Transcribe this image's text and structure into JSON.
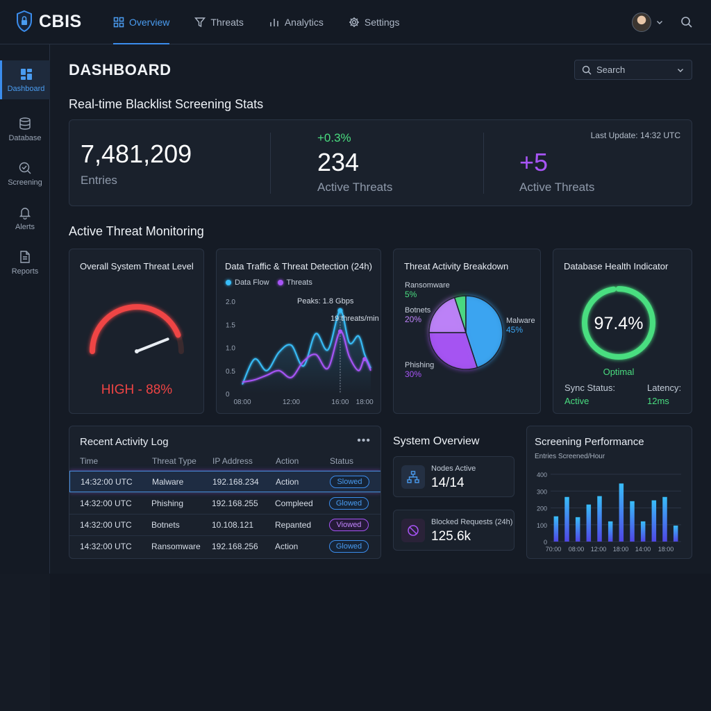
{
  "app": {
    "name": "CBIS"
  },
  "nav": {
    "items": [
      {
        "label": "Overview",
        "icon": "grid-icon",
        "active": true
      },
      {
        "label": "Threats",
        "icon": "filter-icon",
        "active": false
      },
      {
        "label": "Analytics",
        "icon": "bar-chart-icon",
        "active": false
      },
      {
        "label": "Settings",
        "icon": "gear-icon",
        "active": false
      }
    ]
  },
  "sidebar": {
    "items": [
      {
        "label": "Dashboard",
        "icon": "dashboard-icon",
        "active": true
      },
      {
        "label": "Database",
        "icon": "database-icon",
        "active": false
      },
      {
        "label": "Screening",
        "icon": "screening-icon",
        "active": false
      },
      {
        "label": "Alerts",
        "icon": "bell-icon",
        "active": false
      },
      {
        "label": "Reports",
        "icon": "document-icon",
        "active": false
      }
    ]
  },
  "header": {
    "title": "DASHBOARD",
    "search_placeholder": "Search"
  },
  "stats": {
    "section_title": "Real-time Blacklist Screening Stats",
    "entries_value": "7,481,209",
    "entries_label": "Entries",
    "threats_change": "+0.3%",
    "threats_value": "234",
    "threats_label": "Active Threats",
    "new_threats_value": "+5",
    "new_threats_label": "Active Threats",
    "last_update": "Last Update: 14:32 UTC"
  },
  "monitoring": {
    "section_title": "Active Threat Monitoring",
    "threat_level": {
      "title": "Overall System Threat Level",
      "label": "HIGH - 88%",
      "value_pct": 88
    },
    "traffic": {
      "title": "Data Traffic & Threat Detection (24h)",
      "legend": [
        "Data Flow",
        "Threats"
      ],
      "annotation_peak": "Peaks: 1.8 Gbps",
      "annotation_threats": "19 threats/min"
    },
    "breakdown": {
      "title": "Threat Activity Breakdown",
      "slices": [
        {
          "name": "Ransomware",
          "pct": "5%",
          "color": "#4ade80"
        },
        {
          "name": "Botnets",
          "pct": "20%",
          "color": "#c084fc"
        },
        {
          "name": "Malware",
          "pct": "45%",
          "color": "#3ba7f5"
        },
        {
          "name": "Phishing",
          "pct": "30%",
          "color": "#a855f7"
        }
      ]
    },
    "health": {
      "title": "Database Health Indicator",
      "value": "97.4%",
      "value_pct": 97.4,
      "status": "Optimal",
      "sync_label": "Sync Status:",
      "sync_value": "Active",
      "latency_label": "Latency:",
      "latency_value": "12ms"
    }
  },
  "activity_log": {
    "title": "Recent Activity Log",
    "menu": "•••",
    "columns": [
      "Time",
      "Threat Type",
      "IP Address",
      "Action",
      "Status"
    ],
    "rows": [
      {
        "time": "14:32:00 UTC",
        "type": "Malware",
        "ip": "192.168.234",
        "action": "Action",
        "status": "Slowed",
        "style": "blue"
      },
      {
        "time": "14:32:00 UTC",
        "type": "Phishing",
        "ip": "192.168.255",
        "action": "Compleed",
        "status": "Glowed",
        "style": "blue"
      },
      {
        "time": "14:32:00 UTC",
        "type": "Botnets",
        "ip": "10.108.121",
        "action": "Repanted",
        "status": "Viowed",
        "style": "purple"
      },
      {
        "time": "14:32:00 UTC",
        "type": "Ransomware",
        "ip": "192.168.256",
        "action": "Action",
        "status": "Glowed",
        "style": "blue"
      }
    ]
  },
  "system_overview": {
    "title": "System Overview",
    "nodes_label": "Nodes Active",
    "nodes_value": "14/14",
    "blocked_label": "Blocked Requests (24h)",
    "blocked_value": "125.6k"
  },
  "chart_data": [
    {
      "type": "line",
      "title": "Data Traffic & Threat Detection (24h)",
      "x_ticks": [
        "08:00",
        "12:00",
        "16:00",
        "18:00"
      ],
      "y_ticks": [
        "0",
        "0.5",
        "1.0",
        "1.5",
        "2.0"
      ],
      "ylim": [
        0,
        2.0
      ],
      "x": [
        8,
        9,
        10,
        11,
        12,
        13,
        14,
        15,
        16,
        16.75,
        17.5,
        18,
        18.5
      ],
      "series": [
        {
          "name": "Data Flow",
          "color": "#38bdf8",
          "values": [
            0.2,
            0.75,
            0.5,
            0.9,
            1.05,
            0.6,
            1.3,
            0.95,
            1.8,
            1.1,
            1.25,
            0.85,
            0.55
          ]
        },
        {
          "name": "Threats",
          "color": "#a855f7",
          "values": [
            0.25,
            0.3,
            0.4,
            0.5,
            0.35,
            0.7,
            0.85,
            0.55,
            1.35,
            0.8,
            0.5,
            0.75,
            0.5
          ]
        }
      ],
      "legend": "top-left"
    },
    {
      "type": "pie",
      "title": "Threat Activity Breakdown",
      "categories": [
        "Ransomware",
        "Botnets",
        "Phishing",
        "Malware"
      ],
      "values": [
        5,
        20,
        30,
        45
      ]
    },
    {
      "type": "bar",
      "title": "Screening Performance",
      "subtitle": "Entries Screened/Hour",
      "x_ticks": [
        "70:00",
        "08:00",
        "12:00",
        "18:00",
        "14:00",
        "18:00"
      ],
      "y_ticks": [
        "0",
        "100",
        "200",
        "300",
        "400"
      ],
      "ylim": [
        0,
        400
      ],
      "values": [
        150,
        265,
        145,
        220,
        270,
        120,
        345,
        240,
        120,
        245,
        265,
        95
      ],
      "grid": true
    }
  ]
}
